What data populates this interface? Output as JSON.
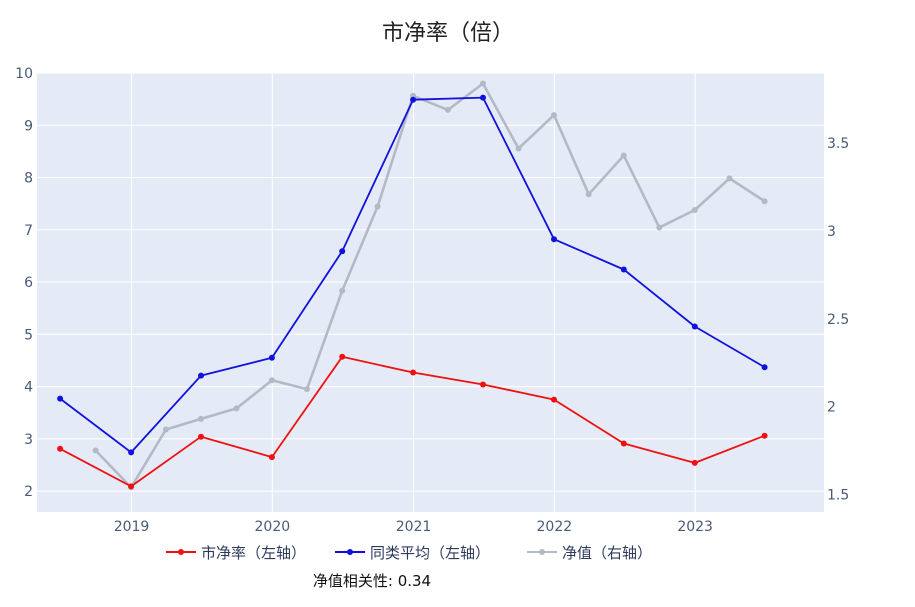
{
  "chart_data": {
    "type": "line",
    "title": "市净率（倍）",
    "xlabel": "",
    "ylabel": "",
    "y2label": "",
    "x_ticks": [
      "2019",
      "2020",
      "2021",
      "2022",
      "2023"
    ],
    "y_ticks": [
      "2",
      "3",
      "4",
      "5",
      "6",
      "7",
      "8",
      "9",
      "10"
    ],
    "y2_ticks": [
      "1.5",
      "2",
      "2.5",
      "3",
      "3.5"
    ],
    "ylim": [
      1.6,
      10
    ],
    "y2lim": [
      1.4,
      3.9
    ],
    "xlim": [
      "2018-05-01",
      "2023-12-01"
    ],
    "grid": true,
    "legend_position": "bottom",
    "series": [
      {
        "name": "市净率（左轴）",
        "axis": "left",
        "color": "#ee1111",
        "x": [
          "2018-06-30",
          "2018-12-31",
          "2019-06-30",
          "2019-12-31",
          "2020-06-30",
          "2020-12-31",
          "2021-06-30",
          "2021-12-31",
          "2022-06-30",
          "2022-12-31",
          "2023-06-30"
        ],
        "values": [
          2.81,
          2.09,
          3.04,
          2.65,
          4.57,
          4.27,
          4.04,
          3.75,
          2.91,
          2.54,
          3.06
        ]
      },
      {
        "name": "同类平均（左轴）",
        "axis": "left",
        "color": "#1111dd",
        "x": [
          "2018-06-30",
          "2018-12-31",
          "2019-06-30",
          "2019-12-31",
          "2020-06-30",
          "2020-12-31",
          "2021-06-30",
          "2021-12-31",
          "2022-06-30",
          "2022-12-31",
          "2023-06-30"
        ],
        "values": [
          3.77,
          2.74,
          4.21,
          4.55,
          6.59,
          9.49,
          9.53,
          6.82,
          6.24,
          5.15,
          4.37
        ]
      },
      {
        "name": "净值（右轴）",
        "axis": "right",
        "color": "#b3b9c6",
        "x": [
          "2018-09-30",
          "2018-12-31",
          "2019-03-31",
          "2019-06-30",
          "2019-09-30",
          "2019-12-31",
          "2020-03-31",
          "2020-06-30",
          "2020-09-30",
          "2020-12-31",
          "2021-03-31",
          "2021-06-30",
          "2021-09-30",
          "2021-12-31",
          "2022-03-31",
          "2022-06-30",
          "2022-09-30",
          "2022-12-31",
          "2023-03-31",
          "2023-06-30"
        ],
        "values": [
          1.75,
          1.54,
          1.87,
          1.93,
          1.99,
          2.15,
          2.1,
          2.66,
          3.14,
          3.77,
          3.69,
          3.84,
          3.47,
          3.66,
          3.21,
          3.43,
          3.02,
          3.12,
          3.3,
          3.17
        ]
      }
    ],
    "annotation": "净值相关性: 0.34"
  }
}
